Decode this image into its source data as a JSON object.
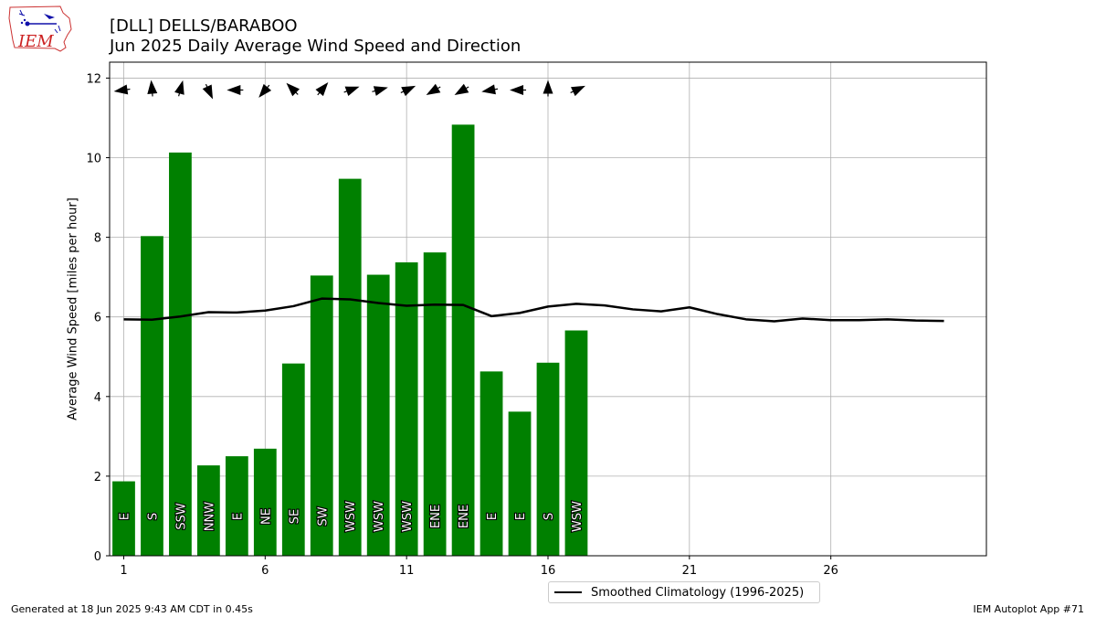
{
  "header": {
    "title_line1": "[DLL] DELLS/BARABOO",
    "title_line2": "Jun 2025 Daily Average Wind Speed and Direction"
  },
  "logo": {
    "text": "IEM"
  },
  "footer": {
    "generated": "Generated at 18 Jun 2025 9:43 AM CDT in 0.45s",
    "app": "IEM Autoplot App #71"
  },
  "colors": {
    "bars": "#008000",
    "climatology": "#000000",
    "grid": "#b0b0b0"
  },
  "chart_data": {
    "type": "bar",
    "title": "Jun 2025 Daily Average Wind Speed and Direction",
    "ylabel": "Average Wind Speed [miles per hour]",
    "xlim": [
      0.5,
      31.5
    ],
    "ylim": [
      0,
      12.4
    ],
    "xticks": [
      1,
      6,
      11,
      16,
      21,
      26
    ],
    "yticks": [
      0,
      2,
      4,
      6,
      8,
      10,
      12
    ],
    "grid": true,
    "legend_position": "bottom-center",
    "days": [
      1,
      2,
      3,
      4,
      5,
      6,
      7,
      8,
      9,
      10,
      11,
      12,
      13,
      14,
      15,
      16,
      17
    ],
    "speeds": [
      1.87,
      8.03,
      10.13,
      2.27,
      2.5,
      2.69,
      4.83,
      7.04,
      9.47,
      7.06,
      7.37,
      7.62,
      10.83,
      4.63,
      3.62,
      4.85,
      5.66
    ],
    "direction_labels": [
      "E",
      "S",
      "SSW",
      "NNW",
      "E",
      "NE",
      "SE",
      "SW",
      "WSW",
      "WSW",
      "WSW",
      "ENE",
      "ENE",
      "E",
      "E",
      "S",
      "WSW"
    ],
    "direction_degrees": [
      82,
      175,
      195,
      335,
      90,
      40,
      135,
      220,
      250,
      255,
      245,
      60,
      60,
      80,
      90,
      180,
      245
    ],
    "climatology": {
      "name": "Smoothed Climatology (1996-2025)",
      "days": [
        1,
        2,
        3,
        4,
        5,
        6,
        7,
        8,
        9,
        10,
        11,
        12,
        13,
        14,
        15,
        16,
        17,
        18,
        19,
        20,
        21,
        22,
        23,
        24,
        25,
        26,
        27,
        28,
        29,
        30
      ],
      "values": [
        5.94,
        5.93,
        6.01,
        6.12,
        6.11,
        6.16,
        6.27,
        6.46,
        6.44,
        6.35,
        6.28,
        6.31,
        6.3,
        6.02,
        6.1,
        6.26,
        6.33,
        6.29,
        6.19,
        6.14,
        6.24,
        6.07,
        5.94,
        5.89,
        5.96,
        5.92,
        5.92,
        5.94,
        5.91,
        5.9
      ]
    }
  }
}
